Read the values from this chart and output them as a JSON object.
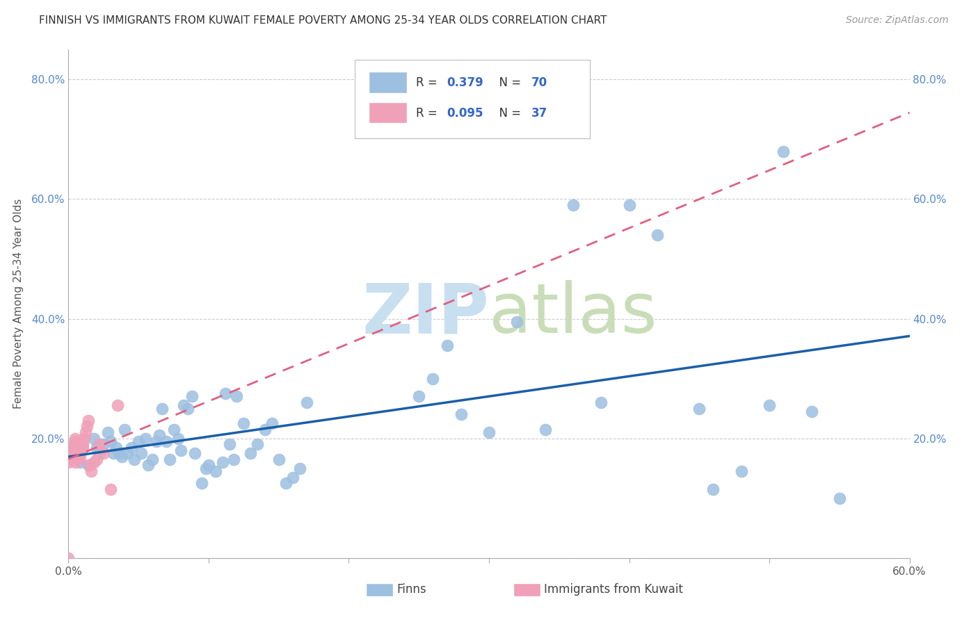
{
  "title": "FINNISH VS IMMIGRANTS FROM KUWAIT FEMALE POVERTY AMONG 25-34 YEAR OLDS CORRELATION CHART",
  "source": "Source: ZipAtlas.com",
  "ylabel": "Female Poverty Among 25-34 Year Olds",
  "xlim": [
    0.0,
    0.6
  ],
  "ylim": [
    0.0,
    0.85
  ],
  "xticks": [
    0.0,
    0.1,
    0.2,
    0.3,
    0.4,
    0.5,
    0.6
  ],
  "xticklabels_show": [
    "0.0%",
    "",
    "",
    "",
    "",
    "",
    "60.0%"
  ],
  "yticks": [
    0.0,
    0.2,
    0.4,
    0.6,
    0.8
  ],
  "yticklabels_left": [
    "",
    "20.0%",
    "40.0%",
    "60.0%",
    "80.0%"
  ],
  "yticklabels_right": [
    "",
    "20.0%",
    "40.0%",
    "60.0%",
    "80.0%"
  ],
  "legend_R1": "0.379",
  "legend_N1": "70",
  "legend_R2": "0.095",
  "legend_N2": "37",
  "color_finns": "#9dbfe0",
  "color_kuwait": "#f0a0b8",
  "color_line_finns": "#1a5fa8",
  "color_line_kuwait": "#e06080",
  "finns_x": [
    0.008,
    0.014,
    0.018,
    0.02,
    0.022,
    0.025,
    0.028,
    0.03,
    0.032,
    0.034,
    0.036,
    0.038,
    0.04,
    0.042,
    0.045,
    0.047,
    0.05,
    0.052,
    0.055,
    0.057,
    0.06,
    0.063,
    0.065,
    0.067,
    0.07,
    0.072,
    0.075,
    0.078,
    0.08,
    0.082,
    0.085,
    0.088,
    0.09,
    0.095,
    0.098,
    0.1,
    0.105,
    0.11,
    0.112,
    0.115,
    0.118,
    0.12,
    0.125,
    0.13,
    0.135,
    0.14,
    0.145,
    0.15,
    0.155,
    0.16,
    0.165,
    0.17,
    0.25,
    0.26,
    0.27,
    0.28,
    0.3,
    0.32,
    0.34,
    0.36,
    0.38,
    0.4,
    0.42,
    0.45,
    0.46,
    0.48,
    0.5,
    0.51,
    0.53,
    0.55
  ],
  "finns_y": [
    0.16,
    0.155,
    0.2,
    0.185,
    0.175,
    0.19,
    0.21,
    0.195,
    0.175,
    0.185,
    0.175,
    0.17,
    0.215,
    0.175,
    0.185,
    0.165,
    0.195,
    0.175,
    0.2,
    0.155,
    0.165,
    0.195,
    0.205,
    0.25,
    0.195,
    0.165,
    0.215,
    0.2,
    0.18,
    0.255,
    0.25,
    0.27,
    0.175,
    0.125,
    0.15,
    0.155,
    0.145,
    0.16,
    0.275,
    0.19,
    0.165,
    0.27,
    0.225,
    0.175,
    0.19,
    0.215,
    0.225,
    0.165,
    0.125,
    0.135,
    0.15,
    0.26,
    0.27,
    0.3,
    0.355,
    0.24,
    0.21,
    0.395,
    0.215,
    0.59,
    0.26,
    0.59,
    0.54,
    0.25,
    0.115,
    0.145,
    0.255,
    0.68,
    0.245,
    0.1
  ],
  "kuwait_x": [
    0.0,
    0.0,
    0.0,
    0.0,
    0.0,
    0.0,
    0.0,
    0.0,
    0.001,
    0.001,
    0.002,
    0.003,
    0.003,
    0.004,
    0.005,
    0.005,
    0.005,
    0.006,
    0.006,
    0.007,
    0.008,
    0.008,
    0.009,
    0.01,
    0.01,
    0.011,
    0.012,
    0.013,
    0.014,
    0.015,
    0.016,
    0.018,
    0.02,
    0.022,
    0.025,
    0.03,
    0.035
  ],
  "kuwait_y": [
    0.0,
    0.16,
    0.165,
    0.168,
    0.17,
    0.172,
    0.175,
    0.18,
    0.17,
    0.175,
    0.18,
    0.175,
    0.185,
    0.19,
    0.195,
    0.2,
    0.16,
    0.165,
    0.17,
    0.165,
    0.17,
    0.175,
    0.18,
    0.185,
    0.19,
    0.2,
    0.21,
    0.22,
    0.23,
    0.155,
    0.145,
    0.16,
    0.165,
    0.19,
    0.175,
    0.115,
    0.255
  ]
}
